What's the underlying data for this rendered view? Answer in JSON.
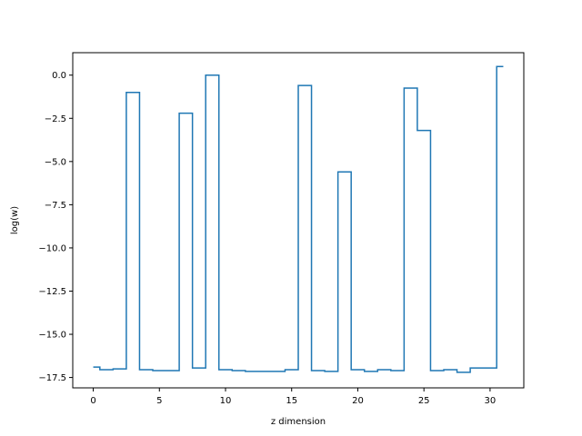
{
  "chart_data": {
    "type": "line",
    "drawstyle": "steps-mid",
    "title": "",
    "xlabel": "z dimension",
    "ylabel": "log(w)",
    "xlim": [
      -1.55,
      32.55
    ],
    "ylim": [
      -18.1,
      1.3
    ],
    "xticks": [
      0,
      5,
      10,
      15,
      20,
      25,
      30
    ],
    "yticks": [
      0.0,
      -2.5,
      -5.0,
      -7.5,
      -10.0,
      -12.5,
      -15.0,
      -17.5
    ],
    "xtick_labels": [
      "0",
      "5",
      "10",
      "15",
      "20",
      "25",
      "30"
    ],
    "ytick_labels": [
      "0.0",
      "−2.5",
      "−5.0",
      "−7.5",
      "−10.0",
      "−12.5",
      "−15.0",
      "−17.5"
    ],
    "grid": false,
    "legend": null,
    "series": [
      {
        "color": "#1f77b4",
        "x": [
          0,
          1,
          2,
          3,
          4,
          5,
          6,
          7,
          8,
          9,
          10,
          11,
          12,
          13,
          14,
          15,
          16,
          17,
          18,
          19,
          20,
          21,
          22,
          23,
          24,
          25,
          26,
          27,
          28,
          29,
          30,
          31
        ],
        "y": [
          -16.9,
          -17.05,
          -17.0,
          -1.0,
          -17.05,
          -17.1,
          -17.1,
          -2.2,
          -16.95,
          0.0,
          -17.05,
          -17.1,
          -17.15,
          -17.15,
          -17.15,
          -17.05,
          -0.6,
          -17.1,
          -17.15,
          -5.6,
          -17.05,
          -17.15,
          -17.05,
          -17.1,
          -0.75,
          -3.2,
          -17.1,
          -17.05,
          -17.2,
          -16.95,
          -16.95,
          0.5
        ]
      }
    ]
  }
}
